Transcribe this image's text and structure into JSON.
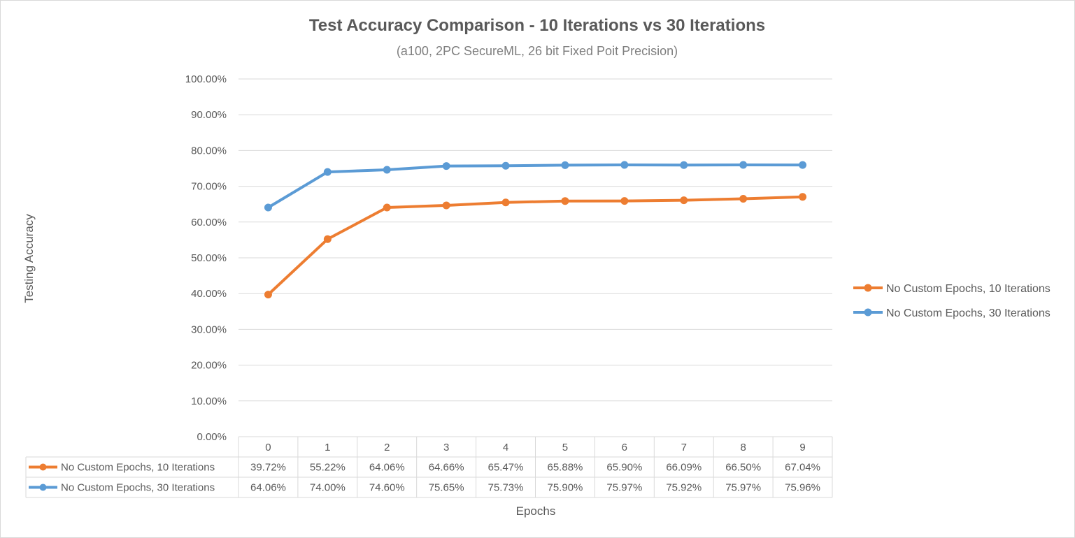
{
  "chart_data": {
    "type": "line",
    "title": "Test Accuracy Comparison - 10 Iterations vs 30 Iterations",
    "subtitle": "(a100, 2PC SecureML, 26 bit Fixed Poit Precision)",
    "xlabel": "Epochs",
    "ylabel": "Testing Accuracy",
    "ylim": [
      0,
      100
    ],
    "y_ticks": [
      "0.00%",
      "10.00%",
      "20.00%",
      "30.00%",
      "40.00%",
      "50.00%",
      "60.00%",
      "70.00%",
      "80.00%",
      "90.00%",
      "100.00%"
    ],
    "categories": [
      "0",
      "1",
      "2",
      "3",
      "4",
      "5",
      "6",
      "7",
      "8",
      "9"
    ],
    "grid": true,
    "legend_position": "right",
    "data_table": true,
    "series": [
      {
        "name": "No Custom Epochs, 10 Iterations",
        "color": "#ed7d31",
        "values": [
          39.72,
          55.22,
          64.06,
          64.66,
          65.47,
          65.88,
          65.9,
          66.09,
          66.5,
          67.04
        ],
        "labels": [
          "39.72%",
          "55.22%",
          "64.06%",
          "64.66%",
          "65.47%",
          "65.88%",
          "65.90%",
          "66.09%",
          "66.50%",
          "67.04%"
        ]
      },
      {
        "name": "No Custom Epochs, 30 Iterations",
        "color": "#5b9bd5",
        "values": [
          64.06,
          74.0,
          74.6,
          75.65,
          75.73,
          75.9,
          75.97,
          75.92,
          75.97,
          75.96
        ],
        "labels": [
          "64.06%",
          "74.00%",
          "74.60%",
          "75.65%",
          "75.73%",
          "75.90%",
          "75.97%",
          "75.92%",
          "75.97%",
          "75.96%"
        ]
      }
    ]
  }
}
